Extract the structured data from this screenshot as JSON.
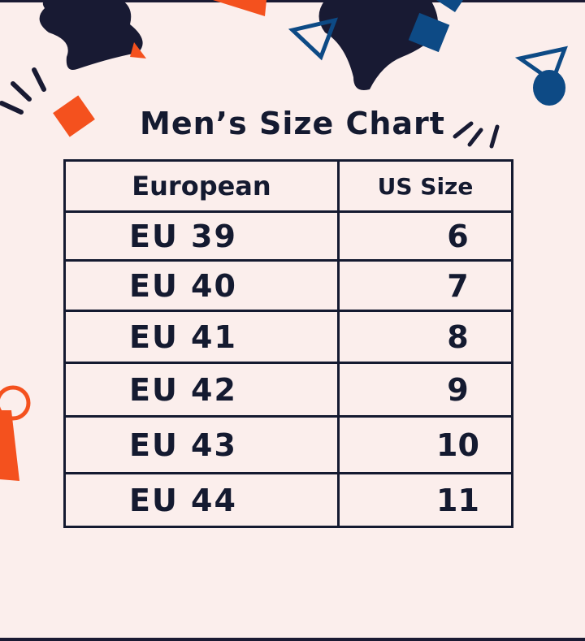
{
  "title": "Men’s Size Chart",
  "colors": {
    "background": "#fbeeec",
    "ink": "#141a30",
    "orange": "#f4511e",
    "blue": "#0d4a85"
  },
  "table": {
    "headers": [
      "European",
      "US Size"
    ],
    "rows": [
      {
        "eu": "EU 39",
        "us": "6"
      },
      {
        "eu": "EU 40",
        "us": "7"
      },
      {
        "eu": "EU 41",
        "us": "8"
      },
      {
        "eu": "EU 42",
        "us": "9"
      },
      {
        "eu": "EU 43",
        "us": "10"
      },
      {
        "eu": "EU 44",
        "us": "11"
      }
    ]
  }
}
